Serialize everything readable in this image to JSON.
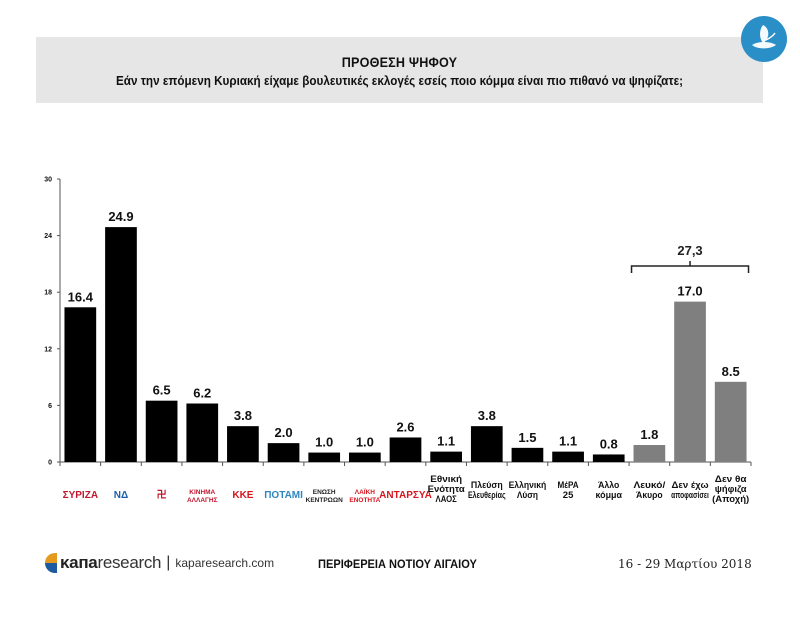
{
  "header": {
    "title": "ΠΡΟΘΕΣΗ ΨΗΦΟΥ",
    "subtitle": "Εάν την επόμενη Κυριακή είχαμε βουλευτικές εκλογές εσείς ποιο κόμμα είναι πιο πιθανό να ψηφίζατε;"
  },
  "badge_icon": "dove-leaf-icon",
  "colors": {
    "party_bar": "#000000",
    "other_bar": "#7f7f7f",
    "header_bg": "#e6e6e6",
    "badge": "#2b8fc7"
  },
  "chart_data": {
    "type": "bar",
    "title": "ΠΡΟΘΕΣΗ ΨΗΦΟΥ",
    "ylim": [
      0,
      30
    ],
    "yticks": [
      0,
      6,
      12,
      18,
      24,
      30
    ],
    "categories": [
      {
        "label": "ΣΥΡΙΖΑ",
        "kind": "logo",
        "logo_color": "#c0172e",
        "value": 16.4,
        "value_label": "16.4",
        "group": "party"
      },
      {
        "label": "ΝΔ",
        "kind": "logo",
        "logo_color": "#1a5fa8",
        "value": 24.9,
        "value_label": "24.9",
        "group": "party"
      },
      {
        "label": "卍",
        "kind": "logo",
        "logo_color": "#c0172e",
        "value": 6.5,
        "value_label": "6.5",
        "group": "party"
      },
      {
        "label": "ΚΙΝΗΜΑ ΑΛΛΑΓΗΣ",
        "kind": "logo",
        "logo_color": "#c0172e",
        "value": 6.2,
        "value_label": "6.2",
        "group": "party"
      },
      {
        "label": "ΚΚΕ",
        "kind": "logo",
        "logo_color": "#d7161e",
        "value": 3.8,
        "value_label": "3.8",
        "group": "party"
      },
      {
        "label": "ΠΟΤΑΜΙ",
        "kind": "logo",
        "logo_color": "#2e86c1",
        "value": 2.0,
        "value_label": "2.0",
        "group": "party"
      },
      {
        "label": "ΕΝΩΣΗ ΚΕΝΤΡΩΩΝ",
        "kind": "logo",
        "logo_color": "#222222",
        "value": 1.0,
        "value_label": "1.0",
        "group": "party"
      },
      {
        "label": "ΛΑΪΚΗ ΕΝΟΤΗΤΑ",
        "kind": "logo",
        "logo_color": "#d7161e",
        "value": 1.0,
        "value_label": "1.0",
        "group": "party"
      },
      {
        "label": "ΑΝΤΑΡΣΥΑ",
        "kind": "logo",
        "logo_color": "#d7161e",
        "value": 2.6,
        "value_label": "2.6",
        "group": "party"
      },
      {
        "label": "Εθνική Ενότητα ΛΑΟΣ",
        "lines": [
          "Εθνική",
          "Ενότητα",
          "ΛΑΟΣ"
        ],
        "kind": "text",
        "value": 1.1,
        "value_label": "1.1",
        "group": "party"
      },
      {
        "label": "Πλεύση Ελευθερίας",
        "lines": [
          "Πλεύση",
          "Ελευθερίας"
        ],
        "kind": "text",
        "value": 3.8,
        "value_label": "3.8",
        "group": "party"
      },
      {
        "label": "Ελληνική Λύση",
        "lines": [
          "Ελληνική",
          "Λύση"
        ],
        "kind": "text",
        "value": 1.5,
        "value_label": "1.5",
        "group": "party"
      },
      {
        "label": "ΜέΡΑ 25",
        "lines": [
          "ΜέΡΑ",
          "25"
        ],
        "kind": "text",
        "value": 1.1,
        "value_label": "1.1",
        "group": "party"
      },
      {
        "label": "Άλλο κόμμα",
        "lines": [
          "Άλλο",
          "κόμμα"
        ],
        "kind": "text",
        "value": 0.8,
        "value_label": "0.8",
        "group": "party"
      },
      {
        "label": "Λευκό/ Άκυρο",
        "lines": [
          "Λευκό/",
          "Άκυρο"
        ],
        "kind": "text",
        "value": 1.8,
        "value_label": "1.8",
        "group": "other"
      },
      {
        "label": "Δεν έχω αποφασίσει",
        "lines": [
          "Δεν έχω",
          "αποφασίσει"
        ],
        "kind": "text",
        "value": 17.0,
        "value_label": "17.0",
        "group": "other"
      },
      {
        "label": "Δεν θα ψήφιζα (Αποχή)",
        "lines": [
          "Δεν θα",
          "ψήφιζα",
          "(Αποχή)"
        ],
        "kind": "text",
        "value": 8.5,
        "value_label": "8.5",
        "group": "other"
      }
    ],
    "annotation": {
      "text": "27,3",
      "spans": [
        "Λευκό/ Άκυρο",
        "Δεν θα ψήφιζα (Αποχή)"
      ]
    }
  },
  "footer": {
    "brand": "κапа",
    "brand_suffix": "research",
    "separator": "|",
    "url": "kaparesearch.com",
    "region": "ΠΕΡΙΦΕΡΕΙΑ ΝΟΤΙΟΥ ΑΙΓΑΙΟΥ",
    "date": "16 - 29 Μαρτίου 2018"
  }
}
